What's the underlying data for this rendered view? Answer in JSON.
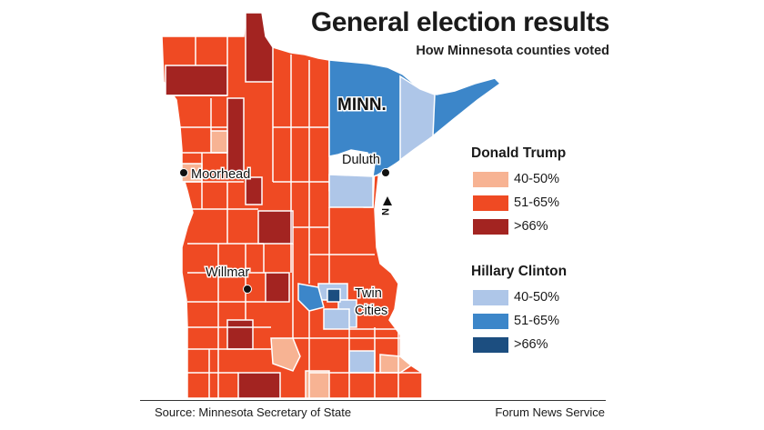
{
  "header": {
    "title": "General election results",
    "subtitle": "How Minnesota counties voted"
  },
  "map": {
    "state_label": "MINN.",
    "north_label": "N",
    "cities": [
      {
        "name": "Duluth"
      },
      {
        "name": "Moorhead"
      },
      {
        "name": "Willmar"
      },
      {
        "name": "Twin\nCities"
      }
    ],
    "city_lines": {
      "twin_1": "Twin",
      "twin_2": "Cities"
    }
  },
  "legend": {
    "trump": {
      "title": "Donald Trump",
      "items": [
        {
          "label": "40-50%",
          "color": "#f7b393"
        },
        {
          "label": "51-65%",
          "color": "#ef4a23"
        },
        {
          "label": ">66%",
          "color": "#a32421"
        }
      ]
    },
    "clinton": {
      "title": "Hillary Clinton",
      "items": [
        {
          "label": "40-50%",
          "color": "#aec6e8"
        },
        {
          "label": "51-65%",
          "color": "#3c86c9"
        },
        {
          "label": ">66%",
          "color": "#1c4e80"
        }
      ]
    }
  },
  "footer": {
    "source": "Source: Minnesota Secretary of State",
    "credit": "Forum News Service"
  },
  "colors": {
    "trump_light": "#f7b393",
    "trump_mid": "#ef4a23",
    "trump_dark": "#a32421",
    "clinton_light": "#aec6e8",
    "clinton_mid": "#3c86c9",
    "clinton_dark": "#1c4e80",
    "county_border": "#ffffff"
  }
}
